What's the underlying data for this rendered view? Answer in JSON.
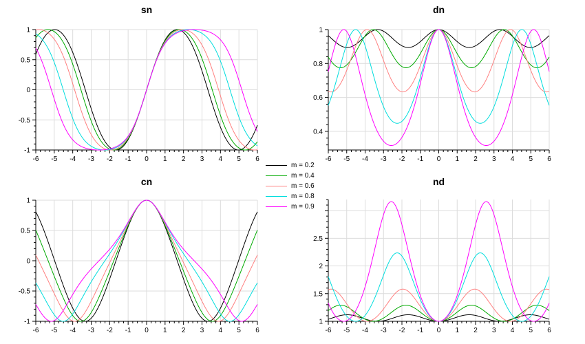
{
  "figure": {
    "background": "#ffffff",
    "grid_color": "#dcdcdc",
    "axis_color": "#000000"
  },
  "legend": {
    "position": "center",
    "items": [
      {
        "label": "m = 0.2",
        "color": "#000000"
      },
      {
        "label": "m = 0.4",
        "color": "#00aa00"
      },
      {
        "label": "m = 0.6",
        "color": "#ff8080"
      },
      {
        "label": "m = 0.8",
        "color": "#00dddd"
      },
      {
        "label": "m = 0.9",
        "color": "#ff00ff"
      }
    ]
  },
  "chart_data": {
    "type": "line",
    "description": "Jacobi elliptic functions sn, dn, cn, nd plotted for five parameter values m; curves are computed as y = fn(x | m) over the x range",
    "x": {
      "range": [
        -6,
        6
      ],
      "ticks": [
        -6,
        -5,
        -4,
        -3,
        -2,
        -1,
        0,
        1,
        2,
        3,
        4,
        5,
        6
      ],
      "minor_step": 0.25,
      "sample_step": 0.02
    },
    "grid": true,
    "series": [
      {
        "name": "m = 0.2",
        "m": 0.2,
        "color": "#000000"
      },
      {
        "name": "m = 0.4",
        "m": 0.4,
        "color": "#00aa00"
      },
      {
        "name": "m = 0.6",
        "m": 0.6,
        "color": "#ff8080"
      },
      {
        "name": "m = 0.8",
        "m": 0.8,
        "color": "#00dddd"
      },
      {
        "name": "m = 0.9",
        "m": 0.9,
        "color": "#ff00ff"
      }
    ],
    "subplots": [
      {
        "title": "sn",
        "function": "sn",
        "ylim": [
          -1,
          1
        ],
        "yticks": [
          -1,
          -0.5,
          0,
          0.5,
          1
        ],
        "ytick_labels": [
          "-1",
          "-0.5",
          "0",
          "0.5",
          "1"
        ],
        "y_minor_step": 0.1
      },
      {
        "title": "dn",
        "function": "dn",
        "ylim": [
          0.29,
          1
        ],
        "yticks": [
          0.4,
          0.6,
          0.8,
          1
        ],
        "ytick_labels": [
          "0.4",
          "0.6",
          "0.8",
          "1"
        ],
        "y_minor_step": 0.04
      },
      {
        "title": "cn",
        "function": "cn",
        "ylim": [
          -1,
          1
        ],
        "yticks": [
          -1,
          -0.5,
          0,
          0.5,
          1
        ],
        "ytick_labels": [
          "-1",
          "-0.5",
          "0",
          "0.5",
          "1"
        ],
        "y_minor_step": 0.1
      },
      {
        "title": "nd",
        "function": "nd",
        "ylim": [
          1,
          3.2
        ],
        "yticks": [
          1,
          1.5,
          2,
          2.5,
          3
        ],
        "ytick_labels": [
          "1",
          "1.5",
          "2",
          "2.5",
          ""
        ],
        "y_minor_step": 0.1
      }
    ]
  }
}
